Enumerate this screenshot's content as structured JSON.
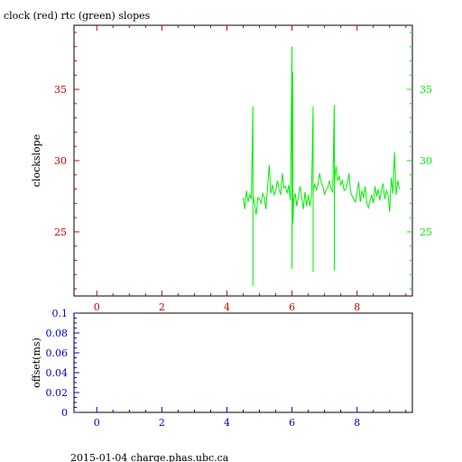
{
  "colors": {
    "red": "#cc0000",
    "green": "#00ee00",
    "blue": "#0000cc",
    "black": "#000000"
  },
  "chart_data": [
    {
      "type": "line",
      "title": "clock (red) rtc (green) slopes",
      "ylabel": "clockslope",
      "xlim": [
        -0.7,
        9.7
      ],
      "ylim": [
        20.5,
        39.5
      ],
      "x_ticks": [
        "0",
        "2",
        "4",
        "6",
        "8"
      ],
      "y_ticks_left": [
        "25",
        "30",
        "35"
      ],
      "y_ticks_right": [
        "25",
        "30",
        "35"
      ],
      "series": [
        {
          "name": "rtc",
          "color": "green",
          "x": [
            4.5,
            4.55,
            4.6,
            4.65,
            4.7,
            4.75,
            4.8,
            4.8,
            4.8,
            4.85,
            4.9,
            4.95,
            5.0,
            5.05,
            5.1,
            5.15,
            5.2,
            5.25,
            5.3,
            5.35,
            5.4,
            5.45,
            5.5,
            5.55,
            5.6,
            5.65,
            5.7,
            5.75,
            5.8,
            5.85,
            5.9,
            5.95,
            6.0,
            6.0,
            6.02,
            6.03,
            6.05,
            6.1,
            6.15,
            6.2,
            6.25,
            6.3,
            6.35,
            6.4,
            6.45,
            6.5,
            6.55,
            6.6,
            6.65,
            6.65,
            6.65,
            6.7,
            6.75,
            6.8,
            6.85,
            6.9,
            6.95,
            7.0,
            7.05,
            7.1,
            7.15,
            7.2,
            7.25,
            7.3,
            7.3,
            7.3,
            7.35,
            7.4,
            7.45,
            7.5,
            7.55,
            7.6,
            7.65,
            7.7,
            7.75,
            7.8,
            7.85,
            7.9,
            7.95,
            8.0,
            8.05,
            8.1,
            8.15,
            8.2,
            8.25,
            8.3,
            8.35,
            8.4,
            8.45,
            8.5,
            8.55,
            8.6,
            8.65,
            8.7,
            8.75,
            8.8,
            8.85,
            8.9,
            8.95,
            9.0,
            9.05,
            9.1,
            9.15,
            9.2,
            9.25,
            9.3
          ],
          "y": [
            27.4,
            26.6,
            27.9,
            27.1,
            27.6,
            27.3,
            33.8,
            21.2,
            27.5,
            27.0,
            26.2,
            27.4,
            27.3,
            27.0,
            27.7,
            27.4,
            26.6,
            28.1,
            29.7,
            27.7,
            28.3,
            27.6,
            27.9,
            28.6,
            28.0,
            27.6,
            29.1,
            28.1,
            28.2,
            27.7,
            28.3,
            27.2,
            38.0,
            22.4,
            36.2,
            25.6,
            27.2,
            27.7,
            26.8,
            27.5,
            28.2,
            27.4,
            26.6,
            27.8,
            26.8,
            27.6,
            26.8,
            27.6,
            33.8,
            22.2,
            27.8,
            28.4,
            27.9,
            28.3,
            29.1,
            28.5,
            28.2,
            27.6,
            28.0,
            28.1,
            28.6,
            28.0,
            27.8,
            33.9,
            22.3,
            28.4,
            29.6,
            28.6,
            28.9,
            28.3,
            28.6,
            27.9,
            28.0,
            28.4,
            29.1,
            27.8,
            27.5,
            27.3,
            27.1,
            27.8,
            28.5,
            27.1,
            27.9,
            27.4,
            28.2,
            27.0,
            26.7,
            27.2,
            27.6,
            27.0,
            28.2,
            27.5,
            28.0,
            27.2,
            27.9,
            28.4,
            27.3,
            27.9,
            27.6,
            26.4,
            28.8,
            27.7,
            30.6,
            27.6,
            28.6,
            28.0
          ]
        }
      ]
    },
    {
      "type": "line",
      "ylabel": "offset(ms)",
      "xlim": [
        -0.7,
        9.7
      ],
      "ylim": [
        0,
        0.1
      ],
      "x_ticks": [
        "0",
        "2",
        "4",
        "6",
        "8"
      ],
      "y_ticks": [
        "0",
        "0.02",
        "0.04",
        "0.06",
        "0.08",
        "0.1"
      ],
      "series": []
    }
  ],
  "footer": "2015-01-04 charge.phas.ubc.ca"
}
